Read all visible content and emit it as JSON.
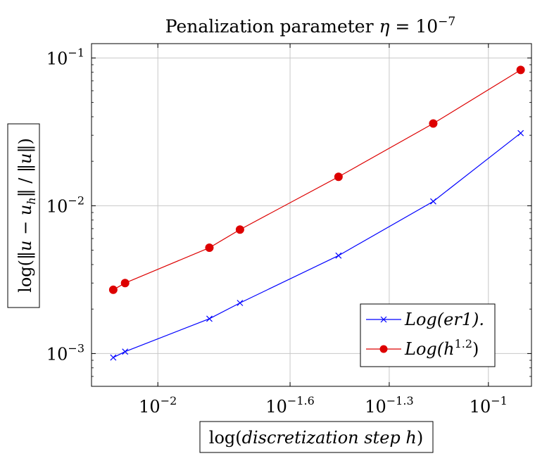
{
  "chart_data": {
    "type": "line",
    "title": "Penalization parameter η = 10⁻⁷",
    "xlabel": "log(discretization step h)",
    "ylabel": "log(‖u − u_h‖ / ‖u‖)",
    "xscale": "log",
    "yscale": "log",
    "xlim": [
      0.0063,
      0.135
    ],
    "ylim": [
      0.0006,
      0.125
    ],
    "grid": true,
    "legend_position": "lower-right",
    "x_ticks": [
      {
        "value": 0.01,
        "base": "10",
        "exp": "−2"
      },
      {
        "value": 0.02512,
        "base": "10",
        "exp": "−1.6"
      },
      {
        "value": 0.05012,
        "base": "10",
        "exp": "−1.3"
      },
      {
        "value": 0.1,
        "base": "10",
        "exp": "−1"
      }
    ],
    "y_ticks": [
      {
        "value": 0.001,
        "base": "10",
        "exp": "−3"
      },
      {
        "value": 0.01,
        "base": "10",
        "exp": "−2"
      },
      {
        "value": 0.1,
        "base": "10",
        "exp": "−1"
      }
    ],
    "series": [
      {
        "name": "Log(er1).",
        "color": "#0000ff",
        "marker": "x",
        "x": [
          0.00733,
          0.00796,
          0.01432,
          0.01772,
          0.0352,
          0.0681,
          0.1252
        ],
        "y": [
          0.00094,
          0.00103,
          0.00172,
          0.0022,
          0.0046,
          0.0107,
          0.031
        ]
      },
      {
        "name": "Log(h^1.2)",
        "color": "#dd0000",
        "marker": "circle",
        "x": [
          0.00733,
          0.00796,
          0.01432,
          0.01772,
          0.0352,
          0.0681,
          0.1252
        ],
        "y": [
          0.0027,
          0.003,
          0.0052,
          0.0069,
          0.0157,
          0.036,
          0.083
        ]
      }
    ]
  }
}
